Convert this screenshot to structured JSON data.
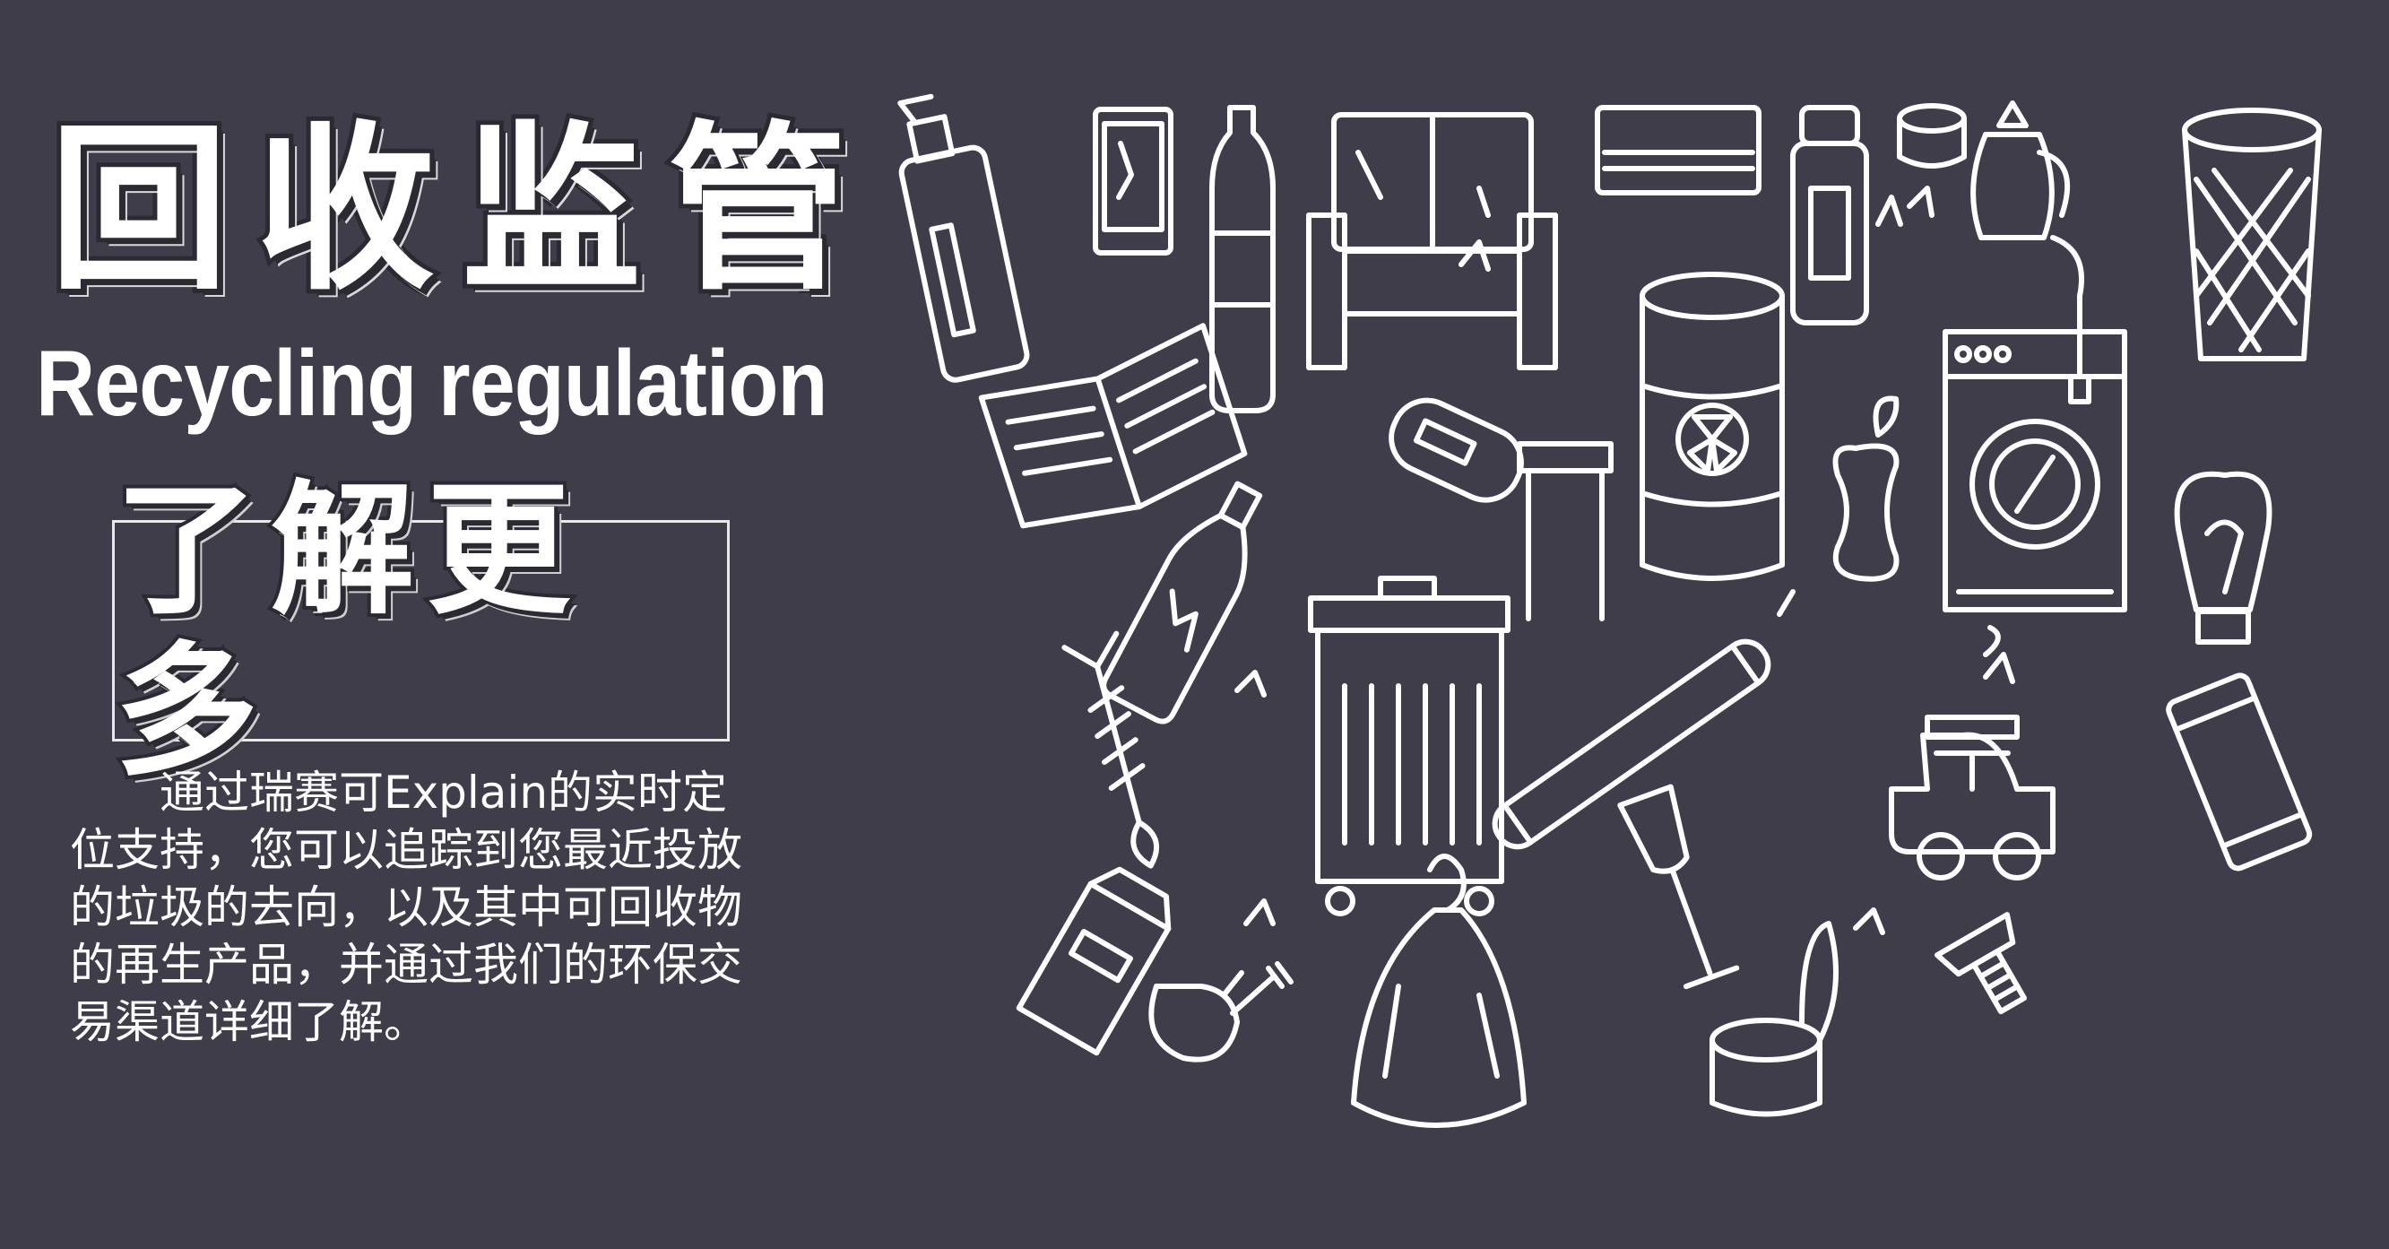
{
  "banner": {
    "title_cn": "回收监管",
    "title_en": "Recycling regulation",
    "learn_more_label": "了解更多",
    "description": "通过瑞赛可Explain的实时定位支持，您可以追踪到您最近投放的垃圾的去向，以及其中可回收物的再生产品，并通过我们的环保交易渠道详细了解。"
  },
  "colors": {
    "background": "#3f3d4a",
    "line_art": "#ffffff"
  },
  "illustration": {
    "icons": [
      "spray-bottle-icon",
      "phone-icon",
      "water-bottle-icon",
      "sofa-icon",
      "air-conditioner-icon",
      "jar-icon",
      "coin-icon",
      "kettle-icon",
      "waste-basket-icon",
      "book-icon",
      "battery-icon",
      "barrel-icon",
      "table-icon",
      "apple-core-icon",
      "washing-machine-icon",
      "light-bulb-icon",
      "glass-bottle-icon",
      "trash-bin-icon",
      "tube-light-icon",
      "car-icon",
      "fish-bone-icon",
      "can-icon",
      "milk-carton-icon",
      "wine-glass-icon",
      "chicken-leg-icon",
      "garbage-bag-icon",
      "tin-can-icon",
      "screw-icon"
    ]
  }
}
